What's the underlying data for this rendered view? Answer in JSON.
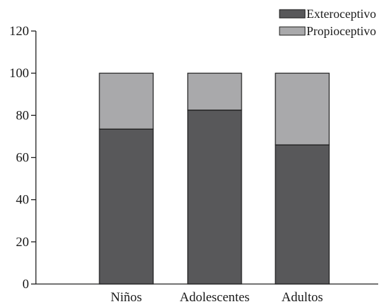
{
  "chart_data": {
    "type": "bar",
    "stacked": true,
    "categories": [
      "Niños",
      "Adolescentes",
      "Adultos"
    ],
    "series": [
      {
        "name": "Exteroceptivo",
        "values": [
          73.5,
          82.5,
          66
        ],
        "color": "#58585a"
      },
      {
        "name": "Propioceptivo",
        "values": [
          26.5,
          17.5,
          34
        ],
        "color": "#a9a9ab"
      }
    ],
    "ylim": [
      0,
      120
    ],
    "yticks": [
      "0",
      "20",
      "40",
      "60",
      "80",
      "100",
      "120"
    ],
    "title": "",
    "xlabel": "",
    "ylabel": "",
    "grid": false,
    "legend_position": "top-right"
  }
}
